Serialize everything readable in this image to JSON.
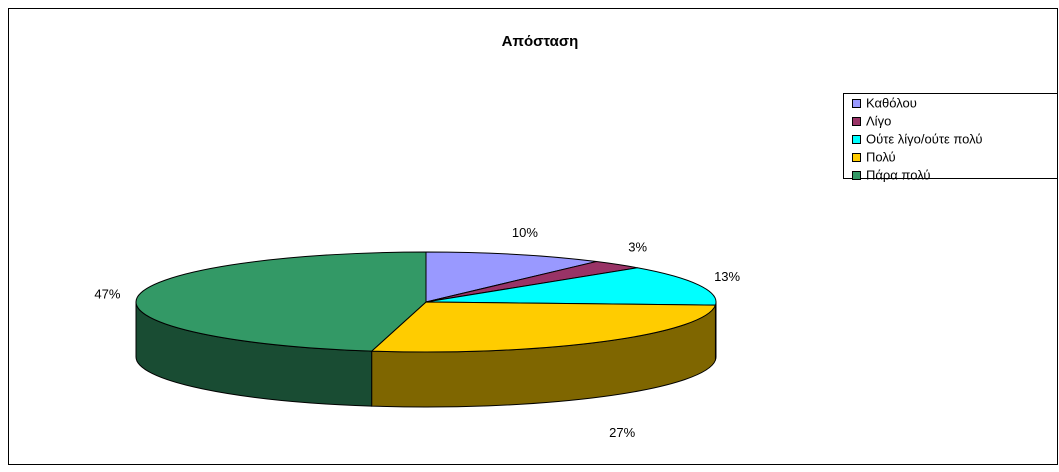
{
  "chart_data": {
    "type": "pie3d",
    "title": "Απόσταση",
    "categories": [
      "Καθόλου",
      "Λίγο",
      "Ούτε λίγο/ούτε πολύ",
      "Πολύ",
      "Πάρα πολύ"
    ],
    "values": [
      10,
      3,
      13,
      27,
      47
    ],
    "value_labels": [
      "10%",
      "3%",
      "13%",
      "27%",
      "47%"
    ],
    "colors": [
      "#9999ff",
      "#993366",
      "#00ffff",
      "#ffcc00",
      "#339966"
    ],
    "legend": "right"
  }
}
